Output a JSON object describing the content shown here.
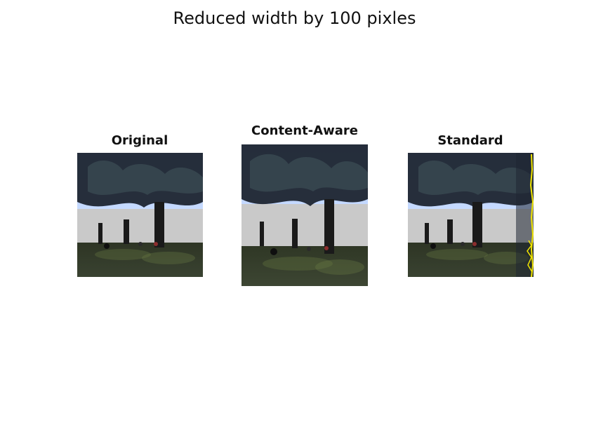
{
  "figure": {
    "title": "Reduced width by 100 pixles"
  },
  "panels": [
    {
      "title": "Original"
    },
    {
      "title": "Content-Aware"
    },
    {
      "title": "Standard"
    }
  ],
  "colors": {
    "seam_highlight": "#f2e600",
    "sky": "#cfe2ff",
    "grass": "#3f4b2f"
  }
}
